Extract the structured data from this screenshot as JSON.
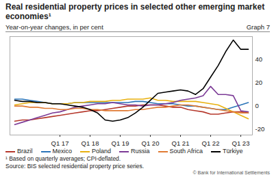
{
  "chart_data": {
    "type": "line",
    "title": "Real residential property prices in selected other emerging market economies¹",
    "subtitle": "Year-on-year changes, in per cent",
    "graph_number": "Graph 7",
    "footnote": "¹ Based on quarterly averages; CPI-deflated.",
    "source": "Source: BIS selected residential property price series.",
    "copyright": "© Bank for International Settlements",
    "categories": [
      null,
      null,
      null,
      null,
      null,
      null,
      "Q1 17",
      null,
      null,
      null,
      "Q1 18",
      null,
      null,
      null,
      "Q1 19",
      null,
      null,
      null,
      "Q1 20",
      null,
      null,
      null,
      "Q1 21",
      null,
      null,
      null,
      "Q1 22",
      null,
      null,
      null,
      "Q1 23",
      null
    ],
    "series": [
      {
        "name": "Brazil",
        "color": "#b5372b",
        "values": [
          -13,
          -12,
          -12,
          -11,
          -10,
          -9,
          -8,
          -7,
          -6,
          -5,
          -4,
          -4,
          -3,
          -2,
          -1,
          0,
          0,
          1,
          1,
          1,
          0,
          -1,
          -1,
          -3,
          -4,
          -5,
          -7,
          -7,
          -6,
          -5,
          -5,
          -6
        ]
      },
      {
        "name": "Mexico",
        "color": "#2a74b8",
        "values": [
          6,
          6,
          5,
          4,
          3,
          2,
          2,
          2,
          3,
          3,
          3,
          3,
          3,
          3,
          3,
          3,
          4,
          4,
          3,
          2,
          2,
          2,
          1,
          0,
          0,
          -1,
          -2,
          -3,
          -3,
          -1,
          1,
          3
        ]
      },
      {
        "name": "Poland",
        "color": "#e8b00f",
        "values": [
          1,
          2,
          3,
          3,
          3,
          2,
          2,
          2,
          3,
          3,
          4,
          4,
          4,
          5,
          5,
          6,
          6,
          6,
          7,
          5,
          5,
          4,
          4,
          4,
          4,
          3,
          2,
          1,
          -2,
          -5,
          -8,
          -11
        ]
      },
      {
        "name": "Russia",
        "color": "#7b3a96",
        "values": [
          -16,
          -14,
          -12,
          -10,
          -8,
          -6,
          -5,
          -3,
          -1,
          0,
          1,
          2,
          2,
          3,
          2,
          1,
          1,
          0,
          1,
          1,
          2,
          3,
          5,
          6,
          7,
          9,
          17,
          10,
          10,
          9,
          -4,
          -5
        ]
      },
      {
        "name": "South Africa",
        "color": "#e07a33",
        "values": [
          0,
          0,
          -1,
          -1,
          -2,
          -2,
          -3,
          -3,
          -2,
          -2,
          -3,
          -3,
          -4,
          -4,
          -4,
          -4,
          -3,
          -3,
          -2,
          -1,
          -1,
          0,
          1,
          1,
          0,
          -1,
          -2,
          -3,
          -4,
          -5,
          -6,
          -6
        ]
      },
      {
        "name": "Türkiye",
        "color": "#000000",
        "values": [
          5,
          4,
          4,
          3,
          3,
          2,
          2,
          1,
          0,
          -1,
          -3,
          -6,
          -12,
          -13,
          -12,
          -10,
          -6,
          -1,
          5,
          11,
          12,
          13,
          14,
          13,
          10,
          15,
          25,
          35,
          47,
          57,
          49,
          49
        ]
      }
    ],
    "ylim": [
      -25,
      60
    ],
    "yticks": [
      -20,
      0,
      20,
      40
    ],
    "grid": false,
    "legend": "bottom"
  }
}
